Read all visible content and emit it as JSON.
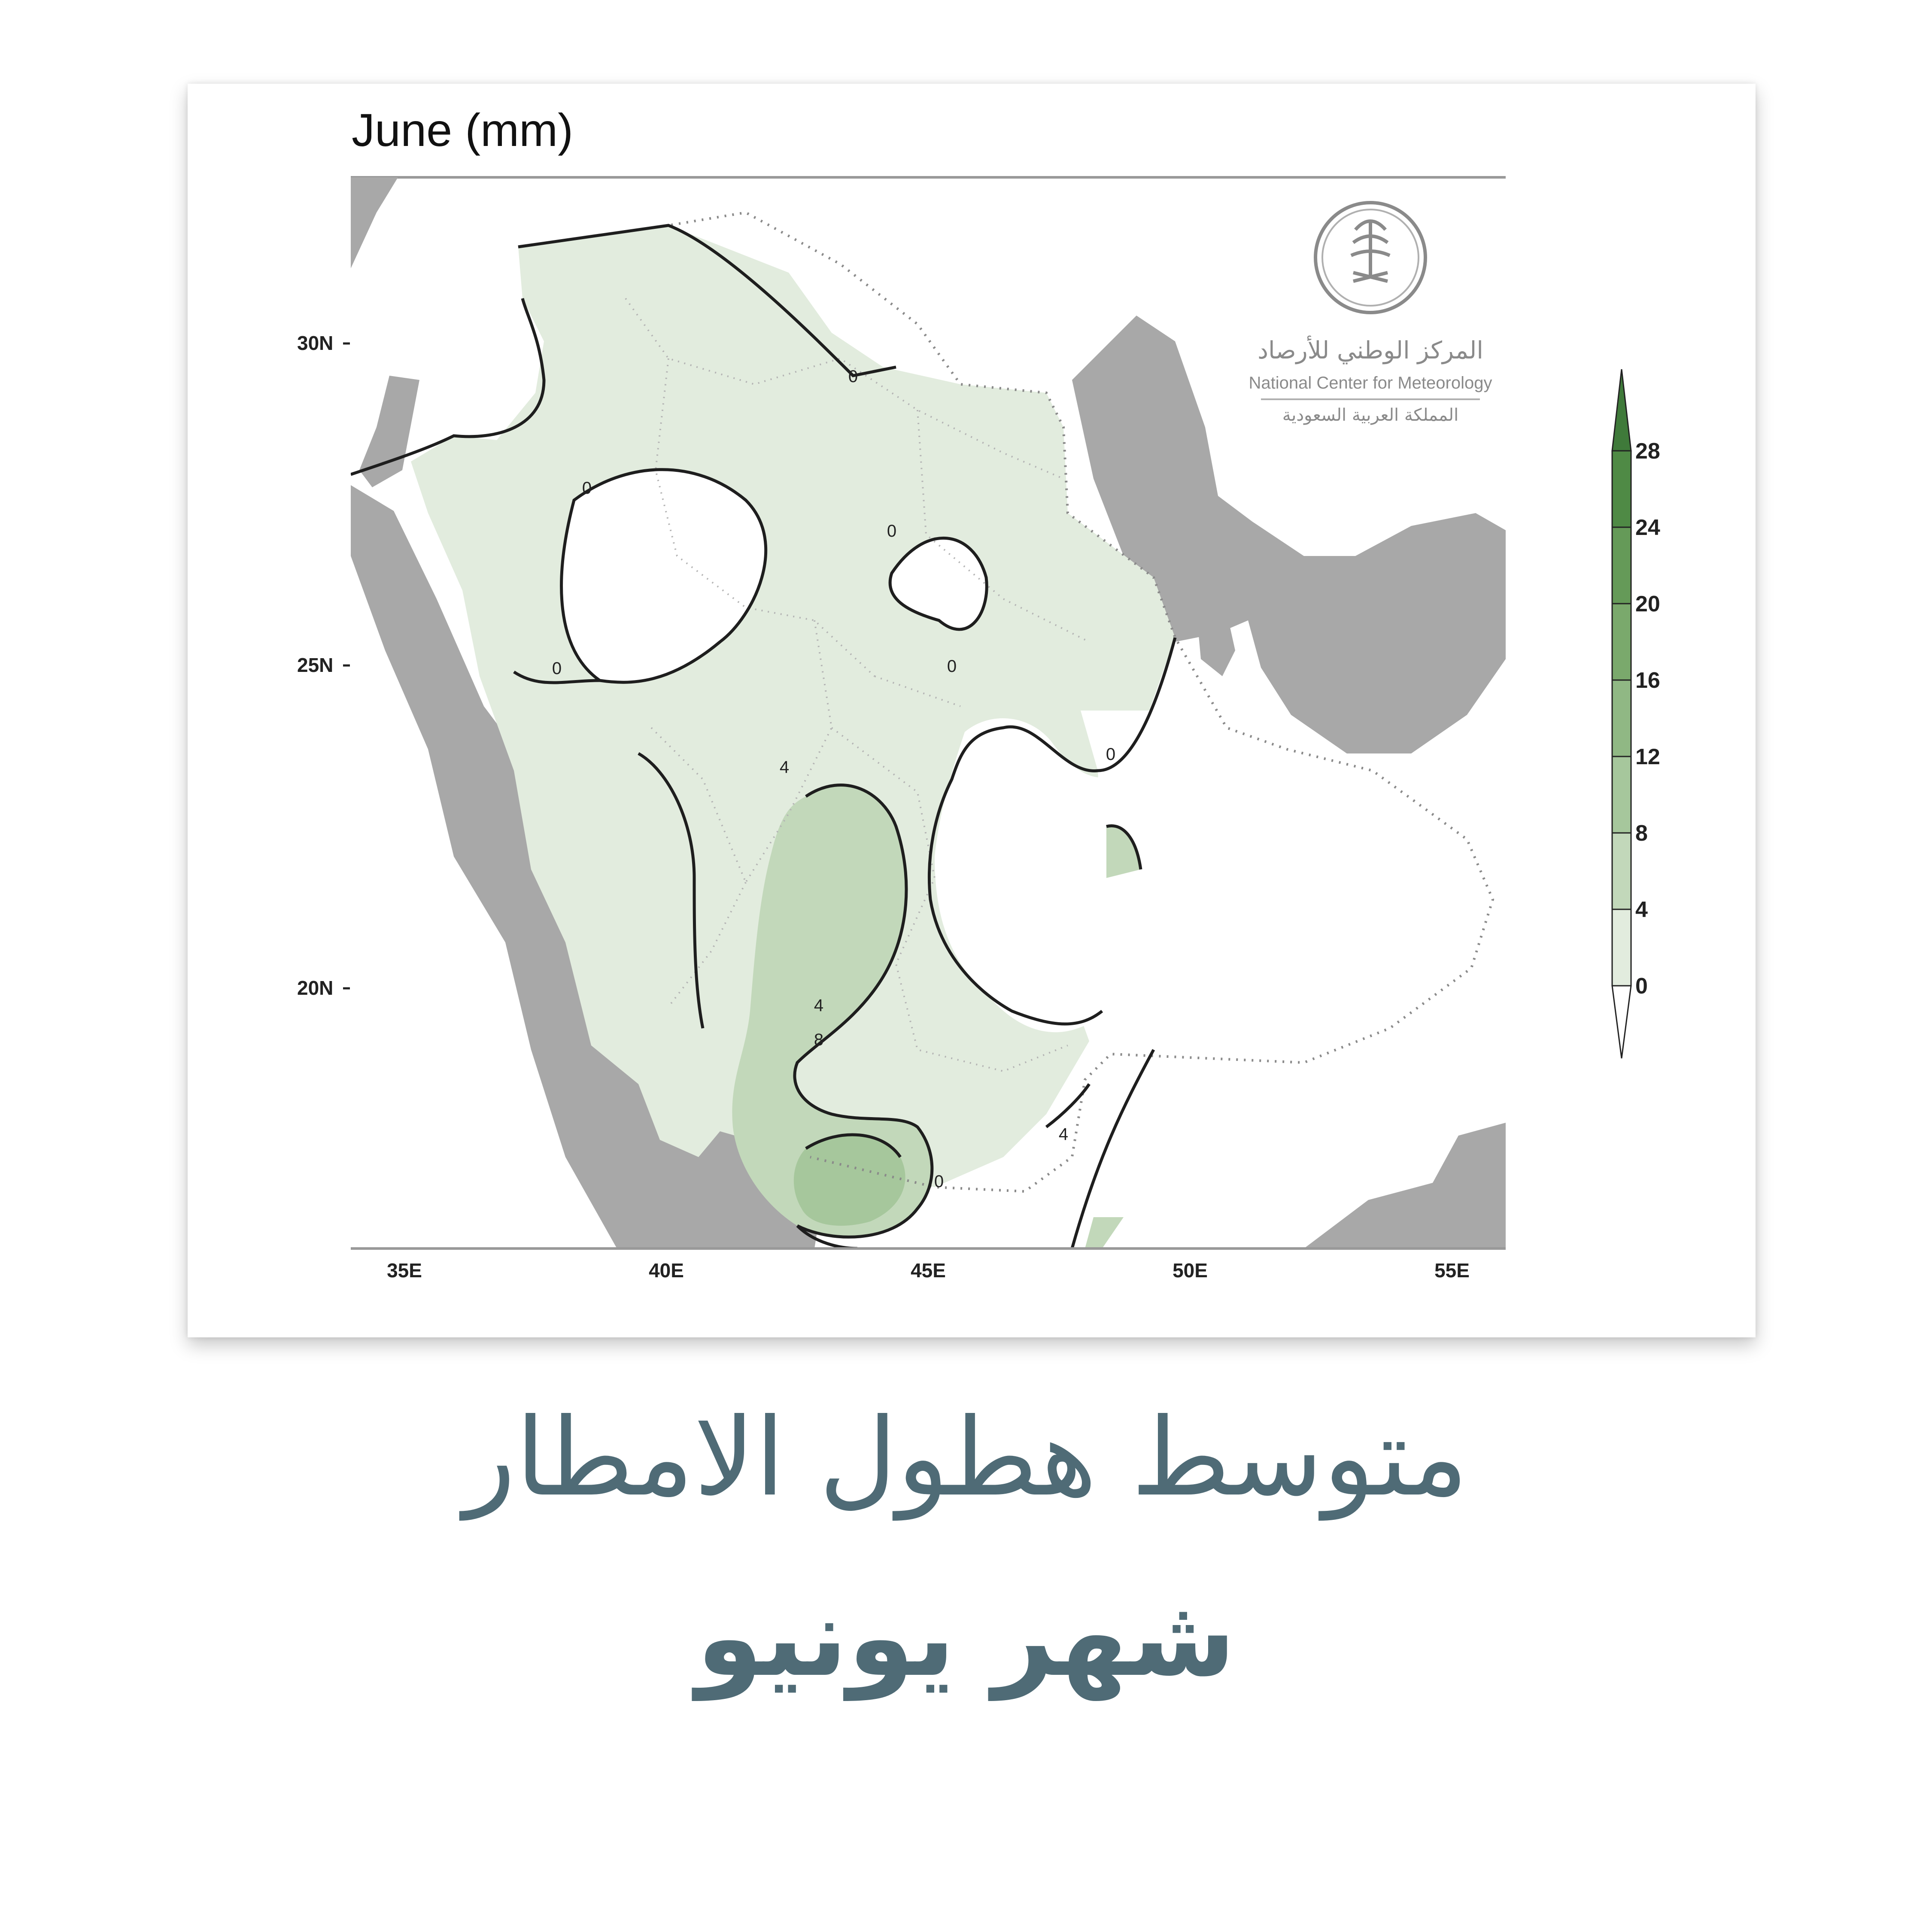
{
  "map": {
    "title": "June (mm)",
    "lat_ticks": [
      "30N",
      "25N",
      "20N"
    ],
    "lon_ticks": [
      "35E",
      "40E",
      "45E",
      "50E",
      "55E"
    ],
    "contour_labels": [
      "0",
      "0",
      "0",
      "0",
      "0",
      "4",
      "0",
      "4",
      "8",
      "4",
      "0"
    ],
    "colorbar": {
      "levels": [
        "28",
        "24",
        "20",
        "16",
        "12",
        "8",
        "4",
        "0"
      ],
      "colors": [
        "#3f7a3a",
        "#4f8a45",
        "#659a58",
        "#7aa96c",
        "#90b884",
        "#a6c79c",
        "#c2d8ba",
        "#e2ecde",
        "#ffffff"
      ]
    },
    "colors": {
      "land": "#a8a8a8",
      "water": "#ffffff",
      "fill_0_4": "#e2ecde",
      "fill_4_8": "#c2d8ba",
      "fill_8_12": "#a6c79c",
      "contour": "#1e1e1e"
    },
    "logo": {
      "line1_ar": "المركز الوطني للأرصاد",
      "line2_en": "National Center for Meteorology",
      "line3_ar": "المملكة العربية السعودية"
    }
  },
  "caption": {
    "line1": "متوسط هطول الامطار",
    "line2": "شهر يونيو"
  }
}
